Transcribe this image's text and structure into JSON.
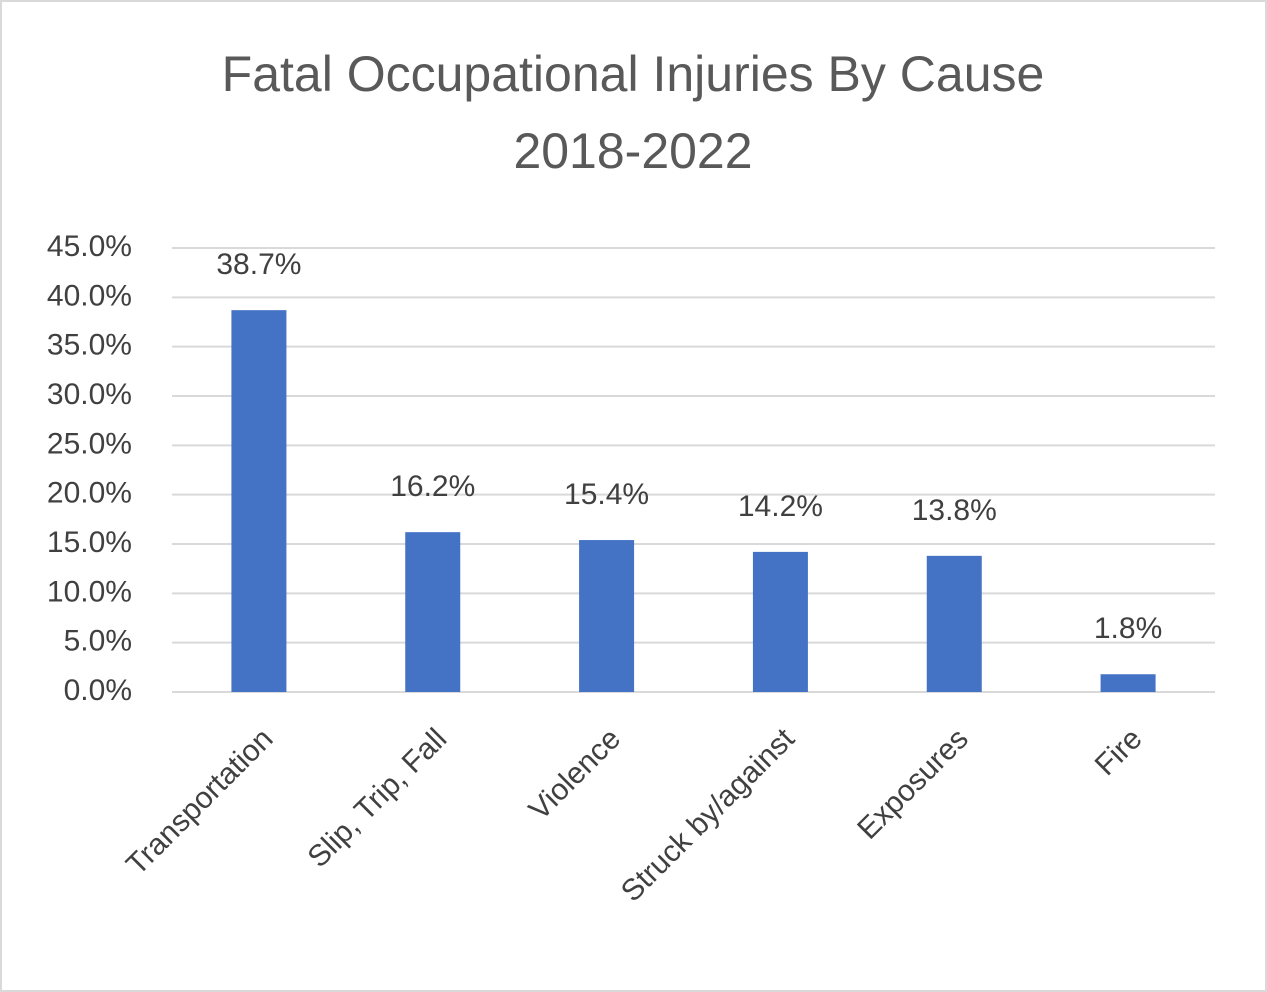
{
  "chart_data": {
    "type": "bar",
    "title": [
      "Fatal Occupational Injuries By Cause",
      "2018-2022"
    ],
    "categories": [
      "Transportation",
      "Slip, Trip, Fall",
      "Violence",
      "Struck by/against",
      "Exposures",
      "Fire"
    ],
    "values": [
      38.7,
      16.2,
      15.4,
      14.2,
      13.8,
      1.8
    ],
    "value_labels": [
      "38.7%",
      "16.2%",
      "15.4%",
      "14.2%",
      "13.8%",
      "1.8%"
    ],
    "color": "#4472c4",
    "ylim": [
      0,
      45
    ],
    "yticks": [
      {
        "value": 0,
        "label": "0.0%"
      },
      {
        "value": 5,
        "label": "5.0%"
      },
      {
        "value": 10,
        "label": "10.0%"
      },
      {
        "value": 15,
        "label": "15.0%"
      },
      {
        "value": 20,
        "label": "20.0%"
      },
      {
        "value": 25,
        "label": "25.0%"
      },
      {
        "value": 30,
        "label": "30.0%"
      },
      {
        "value": 35,
        "label": "35.0%"
      },
      {
        "value": 40,
        "label": "40.0%"
      },
      {
        "value": 45,
        "label": "45.0%"
      }
    ],
    "grid": true
  }
}
